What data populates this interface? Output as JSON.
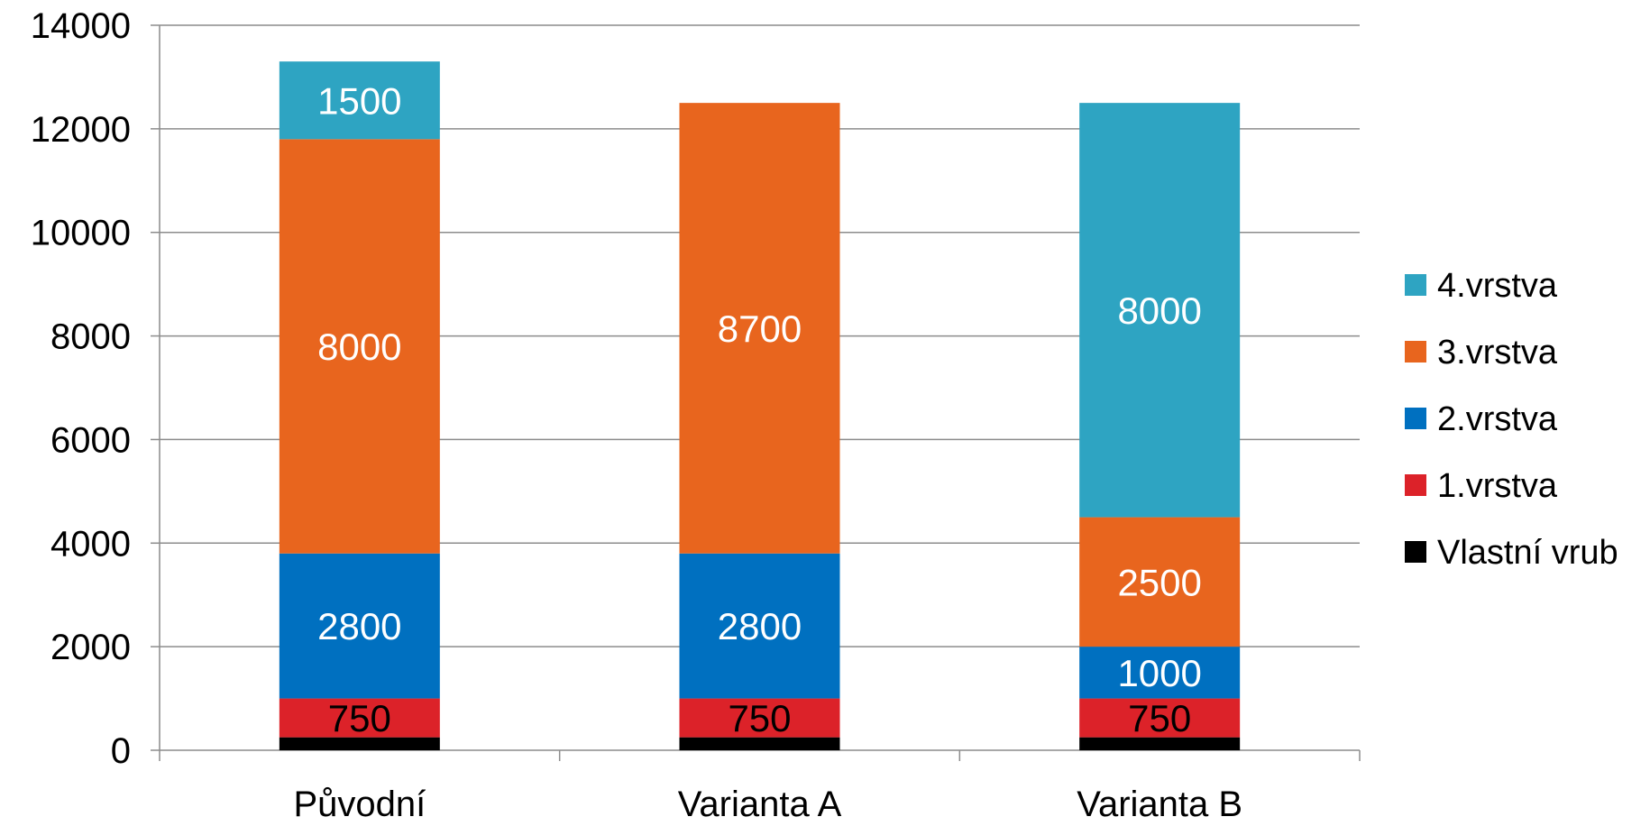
{
  "chart_data": {
    "type": "bar",
    "stacked": true,
    "categories": [
      "Původní",
      "Varianta A",
      "Varianta B"
    ],
    "ylim": [
      0,
      14000
    ],
    "yticks": [
      0,
      2000,
      4000,
      6000,
      8000,
      10000,
      12000,
      14000
    ],
    "ytick_labels": [
      "0",
      "2000",
      "4000",
      "6000",
      "8000",
      "10000",
      "12000",
      "14000"
    ],
    "grid": true,
    "legend_position": "right",
    "xlabel": "",
    "ylabel": "",
    "title": "",
    "series": [
      {
        "name": "Vlastní vrub",
        "color": "#000000",
        "values": [
          250,
          250,
          250
        ],
        "labels": [
          "",
          "",
          ""
        ]
      },
      {
        "name": "1.vrstva",
        "color": "#DC2229",
        "values": [
          750,
          750,
          750
        ],
        "labels": [
          "750",
          "750",
          "750"
        ]
      },
      {
        "name": "2.vrstva",
        "color": "#0070C0",
        "values": [
          2800,
          2800,
          1000
        ],
        "labels": [
          "2800",
          "2800",
          "1000"
        ]
      },
      {
        "name": "3.vrstva",
        "color": "#E8651E",
        "values": [
          8000,
          8700,
          2500
        ],
        "labels": [
          "8000",
          "8700",
          "2500"
        ]
      },
      {
        "name": "4.vrstva",
        "color": "#2EA4C2",
        "values": [
          1500,
          0,
          8000
        ],
        "labels": [
          "1500",
          "",
          "8000"
        ]
      }
    ]
  }
}
